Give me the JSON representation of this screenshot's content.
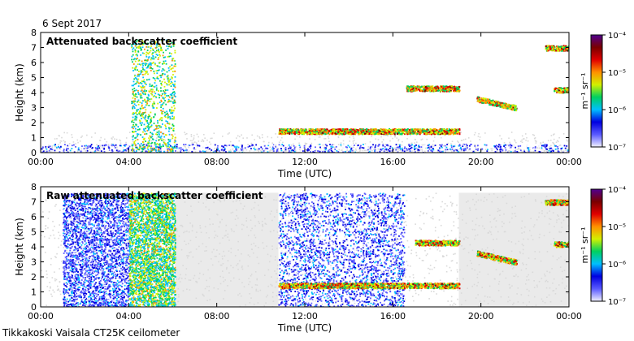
{
  "date_label": "6 Sept 2017",
  "footer_label": "Tikkakoski Vaisala CT25K ceilometer",
  "colors": {
    "background": "#ffffff",
    "clear_air": "#d9d9d9",
    "colormap": [
      "#f0f0ff",
      "#5a5aff",
      "#0000e0",
      "#00bfff",
      "#00d060",
      "#d2f000",
      "#ff9000",
      "#e00000",
      "#7a0000",
      "#500090"
    ]
  },
  "chart_data": [
    {
      "type": "heatmap",
      "title": "Attenuated backscatter coefficient",
      "xlabel": "Time (UTC)",
      "ylabel": "Height (km)",
      "x_ticks": [
        "00:00",
        "04:00",
        "08:00",
        "12:00",
        "16:00",
        "20:00",
        "00:00"
      ],
      "xlim_hours": [
        0,
        24
      ],
      "ylim_km": [
        0,
        8
      ],
      "y_ticks": [
        0,
        1,
        2,
        3,
        4,
        5,
        6,
        7,
        8
      ],
      "features": [
        {
          "name": "near-surface aerosol",
          "t_start": 0,
          "t_end": 24,
          "h_min": 0,
          "h_max": 0.6,
          "level": "low"
        },
        {
          "name": "precipitation",
          "t_start": 4.1,
          "t_end": 6.1,
          "h_min": 0,
          "h_max": 7.6,
          "level": "medium"
        },
        {
          "name": "low cloud",
          "t_start": 10.8,
          "t_end": 19.0,
          "height_km": 1.45,
          "level": "high"
        },
        {
          "name": "cloud layer",
          "t_start": 19.8,
          "t_end": 21.6,
          "height_km_start": 3.6,
          "height_km_end": 3.0,
          "level": "high"
        },
        {
          "name": "mid cloud patches",
          "t_start": 16.6,
          "t_end": 19.0,
          "height_km": 4.3,
          "level": "high"
        },
        {
          "name": "upper cloud",
          "t_start": 22.9,
          "t_end": 24.0,
          "height_km": 7.0,
          "level": "high"
        },
        {
          "name": "late cloud",
          "t_start": 23.3,
          "t_end": 24.0,
          "height_km": 4.2,
          "level": "high"
        }
      ]
    },
    {
      "type": "heatmap",
      "title": "Raw attenuated backscatter coefficient",
      "xlabel": "Time (UTC)",
      "ylabel": "Height (km)",
      "x_ticks": [
        "00:00",
        "04:00",
        "08:00",
        "12:00",
        "16:00",
        "20:00",
        "00:00"
      ],
      "xlim_hours": [
        0,
        24
      ],
      "ylim_km": [
        0,
        8
      ],
      "y_ticks": [
        0,
        1,
        2,
        3,
        4,
        5,
        6,
        7,
        8
      ],
      "features": [
        {
          "name": "noise region (blue)",
          "t_start": 1.0,
          "t_end": 4.0,
          "h_min": 0,
          "h_max": 7.6,
          "level": "low"
        },
        {
          "name": "noise region (green/yellow)",
          "t_start": 4.0,
          "t_end": 6.1,
          "h_min": 0,
          "h_max": 7.6,
          "level": "medium"
        },
        {
          "name": "noise stripes",
          "t_start": 10.8,
          "t_end": 16.5,
          "h_min": 0,
          "h_max": 7.6,
          "level": "low"
        },
        {
          "name": "low cloud",
          "t_start": 10.8,
          "t_end": 19.0,
          "height_km": 1.45,
          "level": "high"
        },
        {
          "name": "cloud layer",
          "t_start": 19.8,
          "t_end": 21.6,
          "height_km_start": 3.6,
          "height_km_end": 3.0,
          "level": "high"
        },
        {
          "name": "mid cloud patches",
          "t_start": 17.0,
          "t_end": 19.0,
          "height_km": 4.3,
          "level": "high"
        },
        {
          "name": "upper cloud",
          "t_start": 22.9,
          "t_end": 24.0,
          "height_km": 7.0,
          "level": "high"
        },
        {
          "name": "late cloud",
          "t_start": 23.3,
          "t_end": 24.0,
          "height_km": 4.2,
          "level": "high"
        }
      ]
    }
  ],
  "colorbar": {
    "label": "m⁻¹ sr⁻¹",
    "range": [
      1e-07,
      0.0001
    ],
    "tick_labels": [
      "10⁻⁴",
      "10⁻⁵",
      "10⁻⁶",
      "10⁻⁷"
    ]
  }
}
